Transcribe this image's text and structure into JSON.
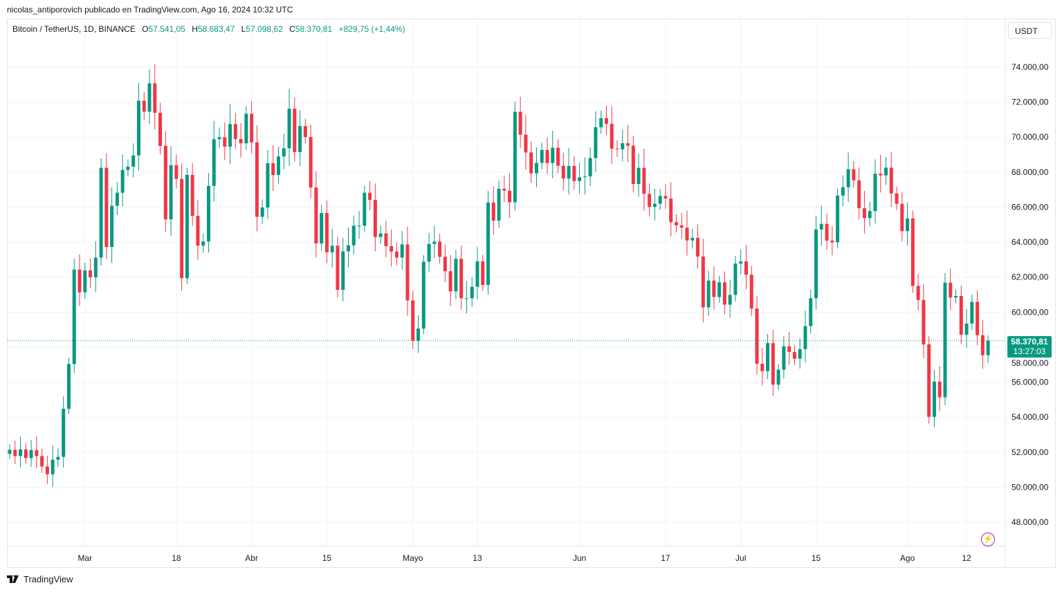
{
  "published": "nicolas_antiporovich publicado en TradingView.com, Ago 16, 2024 10:32 UTC",
  "legend": {
    "symbol": "Bitcoin / TetherUS, 1D, BINANCE",
    "o_label": "O",
    "o": "57.541,05",
    "h_label": "H",
    "h": "58.683,47",
    "l_label": "L",
    "l": "57.098,62",
    "c_label": "C",
    "c": "58.370,81",
    "change": "+829,75 (+1,44%)"
  },
  "currency_button": "USDT",
  "last_price": {
    "price": "58.370,81",
    "countdown": "13:27:03"
  },
  "brand": "TradingView",
  "colors": {
    "up": "#089981",
    "down": "#f23645",
    "grid": "#f0f3fa",
    "accent": "#9c27b0"
  },
  "icons": {
    "logo": "tradingview-logo-icon",
    "alert": "lightning-icon"
  },
  "chart_data": {
    "type": "candlestick",
    "title": "Bitcoin / TetherUS, 1D, BINANCE",
    "start_date": "2024-02-16",
    "first_open": 51900,
    "closes": [
      52137,
      51779,
      52160,
      51663,
      52122,
      51779,
      51185,
      50735,
      51571,
      51733,
      54477,
      57037,
      62432,
      61130,
      62387,
      61987,
      63113,
      68245,
      63724,
      66074,
      66823,
      68124,
      68313,
      68955,
      72078,
      71452,
      73072,
      71388,
      69499,
      65300,
      68393,
      67609,
      61937,
      67840,
      65501,
      63796,
      64037,
      67211,
      69880,
      69988,
      69455,
      70744,
      69892,
      69645,
      71333,
      69702,
      65446,
      65980,
      68508,
      67837,
      68896,
      69361,
      71620,
      69146,
      70631,
      70006,
      67116,
      63924,
      65662,
      63419,
      63793,
      61277,
      63470,
      63818,
      64941,
      64941,
      66819,
      66414,
      64289,
      64498,
      63770,
      63461,
      63118,
      63866,
      60672,
      58364,
      59060,
      62882,
      63891,
      64031,
      63162,
      62334,
      61187,
      63049,
      60792,
      60793,
      61448,
      62901,
      61552,
      66267,
      65231,
      67051,
      66940,
      66278,
      71446,
      70136,
      69122,
      67929,
      68526,
      69265,
      68518,
      69394,
      68366,
      67635,
      68352,
      67491,
      67706,
      67751,
      68804,
      70567,
      71082,
      70757,
      69342,
      69305,
      69648,
      69508,
      67321,
      68243,
      66756,
      66012,
      66191,
      66639,
      66490,
      65140,
      64960,
      64828,
      64096,
      64245,
      63180,
      60277,
      61804,
      60864,
      61706,
      60427,
      60986,
      62772,
      62899,
      62135,
      60208,
      57050,
      56628,
      58231,
      55857,
      56714,
      58050,
      57725,
      57339,
      57889,
      59204,
      60797,
      64724,
      65043,
      64087,
      63987,
      66661,
      67139,
      68165,
      67532,
      65936,
      65372,
      65777,
      67912,
      67813,
      68255,
      66784,
      66188,
      64628,
      65354,
      61498,
      60698,
      58161,
      54018,
      56030,
      55134,
      61686,
      60837,
      60923,
      58712,
      59346,
      60587,
      58683,
      57541,
      58370.81
    ],
    "last_candle": {
      "open": 57541.05,
      "high": 58683.47,
      "low": 57098.62,
      "close": 58370.81
    },
    "x_tick_labels": [
      {
        "label": "Mar",
        "day": 14
      },
      {
        "label": "18",
        "day": 31
      },
      {
        "label": "Abr",
        "day": 45
      },
      {
        "label": "15",
        "day": 59
      },
      {
        "label": "Mayo",
        "day": 75
      },
      {
        "label": "13",
        "day": 87
      },
      {
        "label": "Jun",
        "day": 106
      },
      {
        "label": "17",
        "day": 122
      },
      {
        "label": "Jul",
        "day": 136
      },
      {
        "label": "15",
        "day": 150
      },
      {
        "label": "Ago",
        "day": 167
      },
      {
        "label": "12",
        "day": 178
      }
    ],
    "y_tick_labels": [
      "74.000,00",
      "72.000,00",
      "70.000,00",
      "68.000,00",
      "66.000,00",
      "64.000,00",
      "62.000,00",
      "60.000,00",
      "58.000,00",
      "56.000,00",
      "54.000,00",
      "52.000,00",
      "50.000,00",
      "48.000,00"
    ],
    "y_ticks": [
      74000,
      72000,
      70000,
      68000,
      66000,
      64000,
      62000,
      60000,
      58000,
      56000,
      54000,
      52000,
      50000,
      48000
    ],
    "last_price_value": 58370.81,
    "grid": true
  }
}
